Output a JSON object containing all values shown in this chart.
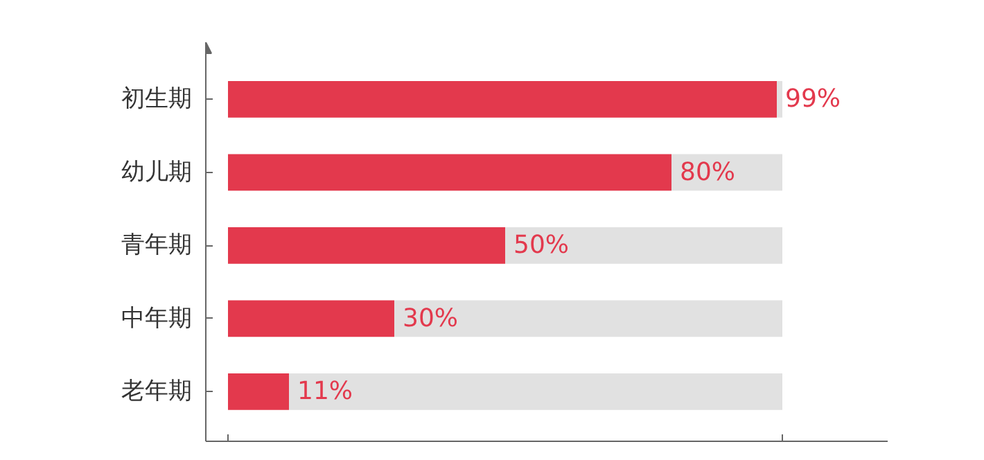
{
  "chart_data": {
    "type": "bar",
    "orientation": "horizontal",
    "stacked": true,
    "categories": [
      "初生期",
      "幼儿期",
      "青年期",
      "中年期",
      "老年期"
    ],
    "series": [
      {
        "color": "#e3394d",
        "values": [
          99,
          80,
          50,
          30,
          11
        ],
        "value_labels": [
          "99%",
          "80%",
          "50%",
          "30%",
          "11%"
        ]
      },
      {
        "color": "#e1e1e1",
        "values": [
          1,
          20,
          50,
          70,
          89
        ]
      }
    ],
    "xlim": [
      -4,
      119
    ],
    "xticks": [
      {
        "value": 0,
        "label": null
      },
      {
        "value": 100,
        "label": null
      }
    ],
    "tick_labels": "y",
    "grid": false
  }
}
